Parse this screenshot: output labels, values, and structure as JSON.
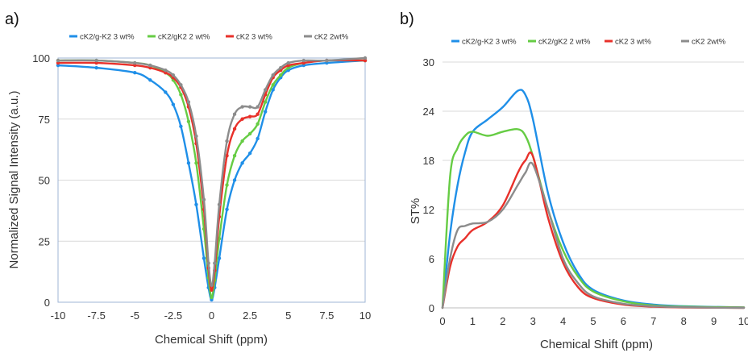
{
  "chart_data": [
    {
      "panel_label": "a)",
      "type": "line",
      "xlabel": "Chemical Shift (ppm)",
      "ylabel": "Normalized Signal Intensity (a.u.)",
      "xlim": [
        -10,
        10
      ],
      "ylim": [
        0,
        100
      ],
      "xticks": [
        "-10",
        "-7.5",
        "-5",
        "-2.5",
        "0",
        "2.5",
        "5",
        "7.5",
        "10"
      ],
      "yticks": [
        "0",
        "25",
        "50",
        "75",
        "100"
      ],
      "grid": true,
      "legend_position": "top",
      "colors": {
        "cK2/g-K2 3 wt%": "#1f8fe8",
        "cK2/gK2 2 wt%": "#66cc44",
        "cK2 3 wt%": "#e8302a",
        "cK2 2wt%": "#8c8c8c"
      },
      "series": [
        {
          "name": "cK2/g-K2 3 wt%",
          "color": "#1f8fe8",
          "x": [
            -10,
            -7.5,
            -5,
            -4,
            -3,
            -2.5,
            -2,
            -1.5,
            -1,
            -0.5,
            -0.2,
            0,
            0.2,
            0.5,
            1,
            1.5,
            2,
            2.5,
            3,
            3.5,
            4,
            4.5,
            5,
            6,
            7.5,
            10
          ],
          "y": [
            97,
            96,
            94,
            91,
            86,
            81,
            72,
            57,
            40,
            18,
            6,
            1,
            6,
            18,
            38,
            50,
            57,
            61,
            67,
            78,
            87,
            92,
            95,
            97,
            98,
            99
          ]
        },
        {
          "name": "cK2/gK2 2 wt%",
          "color": "#66cc44",
          "x": [
            -10,
            -7.5,
            -5,
            -4,
            -3,
            -2.5,
            -2,
            -1.5,
            -1,
            -0.5,
            -0.2,
            0,
            0.2,
            0.5,
            1,
            1.5,
            2,
            2.5,
            3,
            3.5,
            4,
            4.5,
            5,
            6,
            7.5,
            10
          ],
          "y": [
            99,
            99,
            98,
            97,
            94,
            91,
            85,
            74,
            57,
            30,
            10,
            2,
            9,
            26,
            48,
            60,
            66,
            69,
            73,
            82,
            89,
            93,
            96,
            98,
            99,
            99
          ]
        },
        {
          "name": "cK2 3 wt%",
          "color": "#e8302a",
          "x": [
            -10,
            -7.5,
            -5,
            -4,
            -3,
            -2.5,
            -2,
            -1.5,
            -1,
            -0.5,
            -0.2,
            0,
            0.2,
            0.5,
            1,
            1.5,
            2,
            2.5,
            3,
            3.5,
            4,
            4.5,
            5,
            6,
            7.5,
            10
          ],
          "y": [
            98,
            98,
            97,
            96,
            94,
            92,
            88,
            80,
            65,
            38,
            14,
            5,
            13,
            35,
            60,
            71,
            75,
            76,
            77,
            85,
            92,
            95,
            97,
            98,
            99,
            99
          ]
        },
        {
          "name": "cK2 2wt%",
          "color": "#8c8c8c",
          "x": [
            -10,
            -7.5,
            -5,
            -4,
            -3,
            -2.5,
            -2,
            -1.5,
            -1,
            -0.5,
            -0.2,
            0,
            0.2,
            0.5,
            1,
            1.5,
            2,
            2.5,
            3,
            3.5,
            4,
            4.5,
            5,
            6,
            7.5,
            10
          ],
          "y": [
            99,
            99,
            98,
            97,
            95,
            93,
            89,
            82,
            68,
            42,
            16,
            7,
            16,
            40,
            66,
            77,
            80,
            80,
            80,
            87,
            93,
            96,
            98,
            99,
            99,
            100
          ]
        }
      ]
    },
    {
      "panel_label": "b)",
      "type": "line",
      "xlabel": "Chemical Shift (ppm)",
      "ylabel": "ST%",
      "xlim": [
        0,
        10
      ],
      "ylim": [
        0,
        30
      ],
      "xticks": [
        "0",
        "1",
        "2",
        "3",
        "4",
        "5",
        "6",
        "7",
        "8",
        "9",
        "10"
      ],
      "yticks": [
        "0",
        "6",
        "12",
        "18",
        "24",
        "30"
      ],
      "grid": true,
      "legend_position": "top",
      "colors": {
        "cK2/g-K2 3 wt%": "#1f8fe8",
        "cK2/gK2 2 wt%": "#66cc44",
        "cK2 3 wt%": "#e8302a",
        "cK2 2wt%": "#8c8c8c"
      },
      "series": [
        {
          "name": "cK2/g-K2 3 wt%",
          "color": "#1f8fe8",
          "x": [
            0,
            0.25,
            0.5,
            0.75,
            1,
            1.5,
            2,
            2.5,
            2.75,
            3,
            3.5,
            4,
            4.5,
            5,
            6,
            7,
            8,
            10
          ],
          "y": [
            0,
            9,
            15,
            19,
            21.5,
            23,
            24.5,
            26.5,
            26,
            23,
            14,
            8,
            4.2,
            2.2,
            0.9,
            0.4,
            0.2,
            0.05
          ]
        },
        {
          "name": "cK2/gK2 2 wt%",
          "color": "#66cc44",
          "x": [
            0,
            0.25,
            0.5,
            0.75,
            1,
            1.5,
            2,
            2.5,
            2.75,
            3,
            3.5,
            4,
            4.5,
            5,
            6,
            7,
            8,
            10
          ],
          "y": [
            0,
            16,
            19.5,
            21,
            21.5,
            21,
            21.5,
            21.8,
            21,
            18.5,
            12,
            7,
            3.8,
            2,
            0.8,
            0.3,
            0.15,
            0.05
          ]
        },
        {
          "name": "cK2 3 wt%",
          "color": "#e8302a",
          "x": [
            0,
            0.25,
            0.5,
            0.75,
            1,
            1.5,
            2,
            2.5,
            2.75,
            3,
            3.5,
            4,
            4.5,
            5,
            6,
            7,
            8,
            10
          ],
          "y": [
            0,
            5,
            7.5,
            8.5,
            9.5,
            10.5,
            12.5,
            16.5,
            18,
            18.5,
            11,
            5.5,
            2.5,
            1.2,
            0.4,
            0.15,
            0.05,
            0
          ]
        },
        {
          "name": "cK2 2wt%",
          "color": "#8c8c8c",
          "x": [
            0,
            0.25,
            0.5,
            0.75,
            1,
            1.5,
            2,
            2.5,
            2.75,
            3,
            3.5,
            4,
            4.5,
            5,
            6,
            7,
            8,
            10
          ],
          "y": [
            0,
            6,
            9.5,
            10,
            10.3,
            10.5,
            12,
            15,
            16.5,
            17.5,
            12,
            6,
            3,
            1.4,
            0.5,
            0.2,
            0.08,
            0
          ]
        }
      ]
    }
  ]
}
